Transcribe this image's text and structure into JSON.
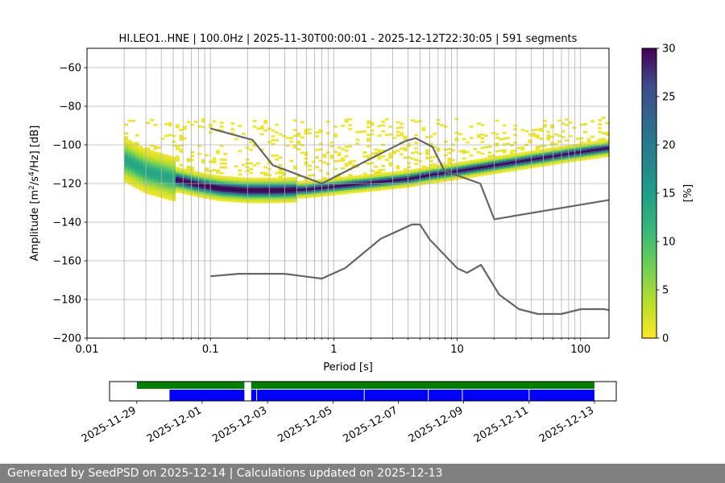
{
  "chart_data": [
    {
      "type": "heatmap",
      "title": "HI.LEO1..HNE | 100.0Hz | 2025-11-30T00:00:01 - 2025-12-12T22:30:05 | 591 segments",
      "xlabel": "Period [s]",
      "ylabel_parts": [
        "Amplitude [m",
        "2",
        "/s",
        "4",
        "/Hz] [dB]"
      ],
      "xscale": "log",
      "xlim": [
        0.01,
        170
      ],
      "ylim": [
        -200,
        -50
      ],
      "x_ticks": [
        {
          "value": 0.01,
          "label": "0.01"
        },
        {
          "value": 0.1,
          "label": "0.1"
        },
        {
          "value": 1,
          "label": "1"
        },
        {
          "value": 10,
          "label": "10"
        },
        {
          "value": 100,
          "label": "100"
        }
      ],
      "y_ticks": [
        {
          "value": -60,
          "label": "−60"
        },
        {
          "value": -80,
          "label": "−80"
        },
        {
          "value": -100,
          "label": "−100"
        },
        {
          "value": -120,
          "label": "−120"
        },
        {
          "value": -140,
          "label": "−140"
        },
        {
          "value": -160,
          "label": "−160"
        },
        {
          "value": -180,
          "label": "−180"
        },
        {
          "value": -200,
          "label": "−200"
        }
      ],
      "grid": true,
      "colormap": "viridis_r",
      "colorbar": {
        "label": "[%]",
        "range": [
          0,
          30
        ],
        "ticks": [
          {
            "value": 0,
            "label": "0"
          },
          {
            "value": 5,
            "label": "5"
          },
          {
            "value": 10,
            "label": "10"
          },
          {
            "value": 15,
            "label": "15"
          },
          {
            "value": 20,
            "label": "20"
          },
          {
            "value": 25,
            "label": "25"
          },
          {
            "value": 30,
            "label": "30"
          }
        ]
      },
      "mode_curve": {
        "period": [
          0.02,
          0.03,
          0.05,
          0.08,
          0.12,
          0.2,
          0.35,
          0.6,
          1,
          2,
          4,
          6,
          10,
          20,
          40,
          80,
          170
        ],
        "db": [
          -108,
          -114,
          -118,
          -121,
          -123,
          -124,
          -124,
          -123.5,
          -122,
          -120,
          -118,
          -116,
          -114,
          -111,
          -108,
          -105,
          -102
        ]
      },
      "reference_curves": [
        {
          "period": [
            0.1,
            0.22,
            0.32,
            0.8,
            3.8,
            4.6,
            6.3,
            7.9,
            15.4,
            20,
            170
          ],
          "db": [
            -91.5,
            -97.4,
            -110.5,
            -120,
            -98,
            -96.5,
            -101,
            -113.5,
            -120,
            -138.5,
            -128.5
          ]
        },
        {
          "period": [
            0.1,
            0.17,
            0.4,
            0.8,
            1.24,
            2.4,
            4.3,
            5,
            6,
            10,
            12,
            15.6,
            21.9,
            31.6,
            45,
            70,
            101,
            154,
            170
          ],
          "db": [
            -168,
            -166.7,
            -166.7,
            -169.2,
            -163.7,
            -148.6,
            -141.2,
            -141.2,
            -149,
            -163.8,
            -166.2,
            -162.1,
            -177.5,
            -185,
            -187.5,
            -187.5,
            -185,
            -185,
            -185.5
          ]
        }
      ]
    },
    {
      "type": "timeline",
      "x_ticks": [
        {
          "value": "2025-11-29",
          "label": "2025-11-29"
        },
        {
          "value": "2025-12-01",
          "label": "2025-12-01"
        },
        {
          "value": "2025-12-03",
          "label": "2025-12-03"
        },
        {
          "value": "2025-12-05",
          "label": "2025-12-05"
        },
        {
          "value": "2025-12-07",
          "label": "2025-12-07"
        },
        {
          "value": "2025-12-09",
          "label": "2025-12-09"
        },
        {
          "value": "2025-12-11",
          "label": "2025-12-11"
        },
        {
          "value": "2025-12-13",
          "label": "2025-12-13"
        }
      ],
      "xlim": [
        "2025-11-28T04:00",
        "2025-12-13T16:00"
      ],
      "data_coverage": {
        "color": "#008000",
        "intervals": [
          [
            "2025-11-29T00:00",
            "2025-12-02T07:00"
          ],
          [
            "2025-12-02T12:00",
            "2025-12-13T00:00"
          ]
        ]
      },
      "psd_coverage": {
        "color": "#0000ff",
        "intervals": [
          [
            "2025-11-30T00:00",
            "2025-12-02T07:00"
          ],
          [
            "2025-12-02T12:00",
            "2025-12-13T00:00"
          ]
        ],
        "gaps": [
          "2025-12-02T16:00",
          "2025-12-05T23:00",
          "2025-12-07T22:00",
          "2025-12-08T23:00",
          "2025-12-11T00:00"
        ]
      }
    }
  ],
  "footer": "Generated by SeedPSD on 2025-12-14 | Calculations updated on 2025-12-13"
}
